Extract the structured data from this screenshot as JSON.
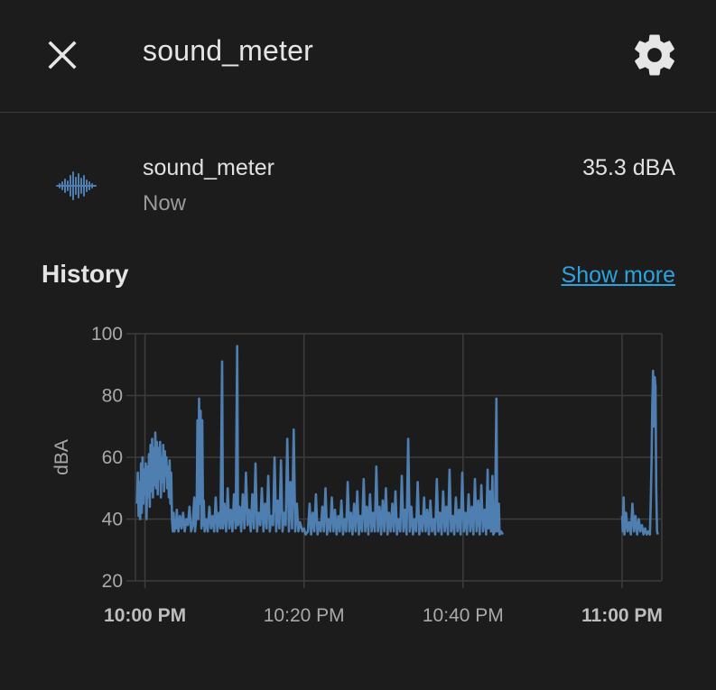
{
  "header": {
    "title": "sound_meter",
    "close_icon": "close-icon",
    "settings_icon": "gear-icon"
  },
  "entity": {
    "icon": "waveform-icon",
    "name": "sound_meter",
    "time": "Now",
    "state": "35.3 dBA"
  },
  "history": {
    "title": "History",
    "show_more": "Show more"
  },
  "colors": {
    "background": "#1c1c1c",
    "series": "#4e7fb0",
    "link": "#2aa3e0",
    "grid": "#3d3d3d"
  },
  "chart_data": {
    "type": "line",
    "ylabel": "dBA",
    "ylim": [
      20,
      100
    ],
    "yticks": [
      {
        "value": 20,
        "label": "20"
      },
      {
        "value": 40,
        "label": "40"
      },
      {
        "value": 60,
        "label": "60"
      },
      {
        "value": 80,
        "label": "80"
      },
      {
        "value": 100,
        "label": "100"
      }
    ],
    "xlim_minutes": [
      -1.2,
      65
    ],
    "xticks": [
      {
        "minute": 0,
        "label": "10:00 PM",
        "major": true
      },
      {
        "minute": 20,
        "label": "10:20 PM",
        "major": false
      },
      {
        "minute": 40,
        "label": "10:40 PM",
        "major": false
      },
      {
        "minute": 60,
        "label": "11:00 PM",
        "major": true
      }
    ],
    "grid": true,
    "legend": "none",
    "series": [
      {
        "values": [
          [
            -1.0,
            45
          ],
          [
            -0.9,
            55
          ],
          [
            -0.8,
            41
          ],
          [
            -0.7,
            52
          ],
          [
            -0.6,
            40
          ],
          [
            -0.5,
            58
          ],
          [
            -0.4,
            42
          ],
          [
            -0.3,
            60
          ],
          [
            -0.2,
            45
          ],
          [
            -0.1,
            56
          ],
          [
            0.0,
            48
          ],
          [
            0.1,
            58
          ],
          [
            0.2,
            40
          ],
          [
            0.3,
            57
          ],
          [
            0.4,
            47
          ],
          [
            0.5,
            61
          ],
          [
            0.6,
            44
          ],
          [
            0.7,
            64
          ],
          [
            0.8,
            49
          ],
          [
            0.9,
            66
          ],
          [
            1.0,
            47
          ],
          [
            1.1,
            63
          ],
          [
            1.2,
            51
          ],
          [
            1.3,
            68
          ],
          [
            1.4,
            50
          ],
          [
            1.5,
            65
          ],
          [
            1.6,
            48
          ],
          [
            1.7,
            63
          ],
          [
            1.8,
            53
          ],
          [
            1.9,
            65
          ],
          [
            2.0,
            47
          ],
          [
            2.1,
            60
          ],
          [
            2.2,
            52
          ],
          [
            2.3,
            64
          ],
          [
            2.4,
            49
          ],
          [
            2.5,
            62
          ],
          [
            2.6,
            54
          ],
          [
            2.7,
            60
          ],
          [
            2.8,
            50
          ],
          [
            2.9,
            57
          ],
          [
            3.0,
            47
          ],
          [
            3.1,
            59
          ],
          [
            3.2,
            45
          ],
          [
            3.3,
            55
          ],
          [
            3.4,
            40
          ],
          [
            3.5,
            36
          ],
          [
            3.6,
            42
          ],
          [
            3.7,
            36
          ],
          [
            3.8,
            39
          ],
          [
            3.9,
            37
          ],
          [
            4.0,
            43
          ],
          [
            4.2,
            36
          ],
          [
            4.4,
            41
          ],
          [
            4.6,
            37
          ],
          [
            4.8,
            42
          ],
          [
            5.0,
            36
          ],
          [
            5.2,
            40
          ],
          [
            5.4,
            38
          ],
          [
            5.6,
            44
          ],
          [
            5.8,
            36
          ],
          [
            6.0,
            38
          ],
          [
            6.2,
            47
          ],
          [
            6.3,
            36
          ],
          [
            6.5,
            42
          ],
          [
            6.6,
            72
          ],
          [
            6.7,
            40
          ],
          [
            6.8,
            79
          ],
          [
            6.9,
            45
          ],
          [
            7.0,
            75
          ],
          [
            7.1,
            37
          ],
          [
            7.2,
            72
          ],
          [
            7.3,
            38
          ],
          [
            7.4,
            46
          ],
          [
            7.5,
            36
          ],
          [
            7.7,
            40
          ],
          [
            7.9,
            36
          ],
          [
            8.1,
            44
          ],
          [
            8.3,
            37
          ],
          [
            8.5,
            41
          ],
          [
            8.7,
            36
          ],
          [
            8.9,
            47
          ],
          [
            9.1,
            36
          ],
          [
            9.3,
            42
          ],
          [
            9.5,
            37
          ],
          [
            9.7,
            91
          ],
          [
            9.8,
            37
          ],
          [
            10.0,
            45
          ],
          [
            10.2,
            36
          ],
          [
            10.4,
            50
          ],
          [
            10.6,
            37
          ],
          [
            10.8,
            43
          ],
          [
            11.0,
            36
          ],
          [
            11.2,
            48
          ],
          [
            11.4,
            37
          ],
          [
            11.6,
            96
          ],
          [
            11.7,
            38
          ],
          [
            11.9,
            44
          ],
          [
            12.1,
            36
          ],
          [
            12.3,
            48
          ],
          [
            12.5,
            37
          ],
          [
            12.7,
            55
          ],
          [
            12.9,
            38
          ],
          [
            13.1,
            43
          ],
          [
            13.3,
            36
          ],
          [
            13.5,
            48
          ],
          [
            13.7,
            37
          ],
          [
            13.9,
            58
          ],
          [
            14.1,
            36
          ],
          [
            14.3,
            42
          ],
          [
            14.5,
            38
          ],
          [
            14.7,
            50
          ],
          [
            14.9,
            36
          ],
          [
            15.1,
            45
          ],
          [
            15.3,
            37
          ],
          [
            15.5,
            54
          ],
          [
            15.7,
            36
          ],
          [
            15.9,
            41
          ],
          [
            16.1,
            38
          ],
          [
            16.3,
            60
          ],
          [
            16.5,
            36
          ],
          [
            16.7,
            46
          ],
          [
            16.9,
            37
          ],
          [
            17.1,
            59
          ],
          [
            17.3,
            36
          ],
          [
            17.5,
            42
          ],
          [
            17.7,
            38
          ],
          [
            17.9,
            66
          ],
          [
            18.1,
            36
          ],
          [
            18.3,
            52
          ],
          [
            18.5,
            37
          ],
          [
            18.7,
            69
          ],
          [
            18.9,
            36
          ],
          [
            19.1,
            45
          ],
          [
            19.3,
            36
          ],
          [
            19.5,
            39
          ],
          [
            19.8,
            36
          ],
          [
            20.0,
            37
          ],
          [
            20.2,
            35
          ],
          [
            20.5,
            36
          ],
          [
            20.7,
            45
          ],
          [
            20.9,
            35
          ],
          [
            21.1,
            42
          ],
          [
            21.3,
            36
          ],
          [
            21.5,
            48
          ],
          [
            21.7,
            35
          ],
          [
            21.9,
            39
          ],
          [
            22.1,
            36
          ],
          [
            22.3,
            44
          ],
          [
            22.5,
            36
          ],
          [
            22.7,
            50
          ],
          [
            22.9,
            35
          ],
          [
            23.1,
            40
          ],
          [
            23.3,
            36
          ],
          [
            23.5,
            47
          ],
          [
            23.7,
            36
          ],
          [
            23.9,
            43
          ],
          [
            24.1,
            35
          ],
          [
            24.3,
            41
          ],
          [
            24.5,
            36
          ],
          [
            24.7,
            46
          ],
          [
            24.9,
            35
          ],
          [
            25.1,
            40
          ],
          [
            25.3,
            36
          ],
          [
            25.5,
            52
          ],
          [
            25.7,
            36
          ],
          [
            25.9,
            42
          ],
          [
            26.1,
            35
          ],
          [
            26.3,
            45
          ],
          [
            26.5,
            36
          ],
          [
            26.7,
            49
          ],
          [
            26.9,
            35
          ],
          [
            27.1,
            41
          ],
          [
            27.3,
            36
          ],
          [
            27.5,
            53
          ],
          [
            27.7,
            36
          ],
          [
            27.9,
            44
          ],
          [
            28.1,
            35
          ],
          [
            28.3,
            48
          ],
          [
            28.5,
            36
          ],
          [
            28.7,
            42
          ],
          [
            28.9,
            36
          ],
          [
            29.1,
            57
          ],
          [
            29.3,
            36
          ],
          [
            29.5,
            44
          ],
          [
            29.7,
            35
          ],
          [
            29.9,
            46
          ],
          [
            30.1,
            36
          ],
          [
            30.3,
            50
          ],
          [
            30.5,
            35
          ],
          [
            30.7,
            42
          ],
          [
            30.9,
            36
          ],
          [
            31.1,
            45
          ],
          [
            31.3,
            36
          ],
          [
            31.5,
            49
          ],
          [
            31.7,
            35
          ],
          [
            31.9,
            40
          ],
          [
            32.1,
            36
          ],
          [
            32.3,
            54
          ],
          [
            32.5,
            36
          ],
          [
            32.7,
            43
          ],
          [
            32.9,
            35
          ],
          [
            33.1,
            66
          ],
          [
            33.3,
            36
          ],
          [
            33.5,
            44
          ],
          [
            33.7,
            35
          ],
          [
            33.9,
            40
          ],
          [
            34.1,
            36
          ],
          [
            34.3,
            52
          ],
          [
            34.5,
            35
          ],
          [
            34.7,
            41
          ],
          [
            34.9,
            36
          ],
          [
            35.1,
            47
          ],
          [
            35.3,
            36
          ],
          [
            35.5,
            43
          ],
          [
            35.7,
            35
          ],
          [
            35.9,
            46
          ],
          [
            36.1,
            36
          ],
          [
            36.3,
            40
          ],
          [
            36.5,
            35
          ],
          [
            36.7,
            53
          ],
          [
            36.9,
            36
          ],
          [
            37.1,
            42
          ],
          [
            37.3,
            35
          ],
          [
            37.5,
            49
          ],
          [
            37.7,
            36
          ],
          [
            37.9,
            44
          ],
          [
            38.1,
            35
          ],
          [
            38.3,
            56
          ],
          [
            38.5,
            36
          ],
          [
            38.7,
            41
          ],
          [
            38.9,
            35
          ],
          [
            39.1,
            47
          ],
          [
            39.3,
            36
          ],
          [
            39.5,
            43
          ],
          [
            39.7,
            35
          ],
          [
            39.9,
            55
          ],
          [
            40.1,
            36
          ],
          [
            40.3,
            42
          ],
          [
            40.5,
            35
          ],
          [
            40.7,
            48
          ],
          [
            40.9,
            36
          ],
          [
            41.1,
            44
          ],
          [
            41.3,
            35
          ],
          [
            41.5,
            53
          ],
          [
            41.7,
            36
          ],
          [
            41.9,
            46
          ],
          [
            42.1,
            35
          ],
          [
            42.3,
            51
          ],
          [
            42.5,
            36
          ],
          [
            42.7,
            43
          ],
          [
            42.9,
            35
          ],
          [
            43.1,
            56
          ],
          [
            43.2,
            37
          ],
          [
            43.4,
            49
          ],
          [
            43.5,
            36
          ],
          [
            43.7,
            54
          ],
          [
            43.8,
            35
          ],
          [
            44.0,
            36
          ],
          [
            44.2,
            79
          ],
          [
            44.3,
            36
          ],
          [
            44.5,
            45
          ],
          [
            44.6,
            35
          ],
          [
            44.8,
            36
          ],
          [
            45.0,
            35
          ]
        ]
      },
      {
        "values": [
          [
            60.0,
            41
          ],
          [
            60.1,
            36
          ],
          [
            60.2,
            47
          ],
          [
            60.3,
            35
          ],
          [
            60.5,
            42
          ],
          [
            60.7,
            36
          ],
          [
            60.9,
            39
          ],
          [
            61.1,
            35
          ],
          [
            61.3,
            45
          ],
          [
            61.5,
            36
          ],
          [
            61.7,
            41
          ],
          [
            61.9,
            35
          ],
          [
            62.1,
            40
          ],
          [
            62.3,
            36
          ],
          [
            62.5,
            38
          ],
          [
            62.7,
            35
          ],
          [
            62.9,
            37
          ],
          [
            63.1,
            35
          ],
          [
            63.3,
            36
          ],
          [
            63.5,
            35
          ],
          [
            63.6,
            45
          ],
          [
            63.7,
            58
          ],
          [
            63.8,
            76
          ],
          [
            63.9,
            88
          ],
          [
            64.0,
            70
          ],
          [
            64.1,
            86
          ],
          [
            64.2,
            83
          ],
          [
            64.3,
            50
          ],
          [
            64.4,
            36
          ],
          [
            64.5,
            35
          ]
        ]
      }
    ]
  }
}
